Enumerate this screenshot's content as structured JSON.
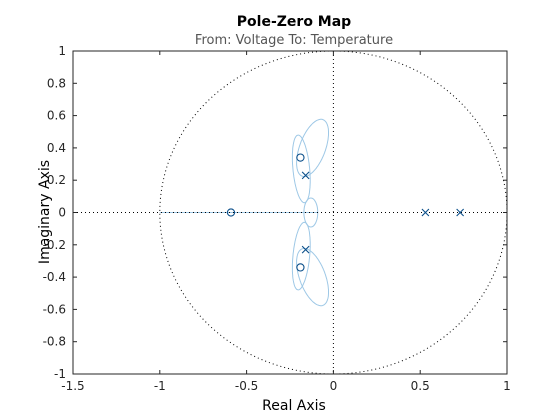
{
  "chart_data": {
    "type": "scatter",
    "title": "Pole-Zero Map",
    "subtitle": "From: Voltage  To: Temperature",
    "xlabel": "Real Axis",
    "ylabel": "Imaginary Axis",
    "xlim": [
      -1.5,
      1
    ],
    "ylim": [
      -1,
      1
    ],
    "xticks": [
      -1.5,
      -1,
      -0.5,
      0,
      0.5,
      1
    ],
    "xtick_labels": [
      "-1.5",
      "-1",
      "-0.5",
      "0",
      "0.5",
      "1"
    ],
    "yticks": [
      -1,
      -0.8,
      -0.6,
      -0.4,
      -0.2,
      0,
      0.2,
      0.4,
      0.6,
      0.8,
      1
    ],
    "ytick_labels": [
      "-1",
      "-0.8",
      "-0.6",
      "-0.4",
      "-0.2",
      "0",
      "0.2",
      "0.4",
      "0.6",
      "0.8",
      "1"
    ],
    "grid": false,
    "unit_circle": true,
    "series": [
      {
        "marker": "x",
        "points": [
          {
            "x": -0.16,
            "y": 0.23
          },
          {
            "x": -0.16,
            "y": -0.23
          },
          {
            "x": 0.53,
            "y": 0.0
          },
          {
            "x": 0.73,
            "y": 0.0
          }
        ]
      },
      {
        "marker": "o",
        "points": [
          {
            "x": -0.19,
            "y": 0.34
          },
          {
            "x": -0.19,
            "y": -0.34
          },
          {
            "x": -0.59,
            "y": 0.0
          }
        ]
      }
    ],
    "colors": {
      "markers": "#0b4f8a",
      "curves": "#9ec8e6",
      "axes": "#262626",
      "reference_lines": "#000000"
    }
  }
}
